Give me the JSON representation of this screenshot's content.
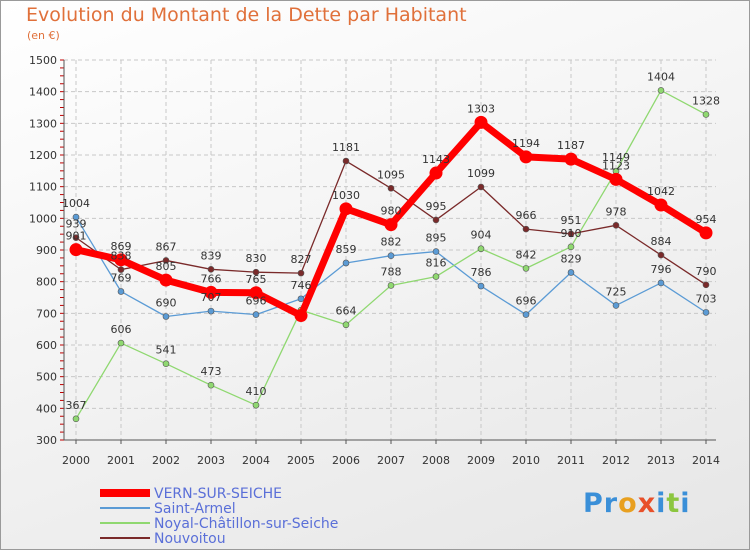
{
  "title": "Evolution du Montant de la Dette par Habitant",
  "unit_label": "(en €)",
  "logo": {
    "letters": [
      {
        "ch": "P",
        "color": "#3a8fd8"
      },
      {
        "ch": "r",
        "color": "#3a8fd8"
      },
      {
        "ch": "o",
        "color": "#e8a020"
      },
      {
        "ch": "x",
        "color": "#e8502a"
      },
      {
        "ch": "i",
        "color": "#3a8fd8"
      },
      {
        "ch": "t",
        "color": "#8cc63f"
      },
      {
        "ch": "i",
        "color": "#3a8fd8"
      }
    ]
  },
  "chart_data": {
    "type": "line",
    "x": [
      "2000",
      "2001",
      "2002",
      "2003",
      "2004",
      "2005",
      "2006",
      "2007",
      "2008",
      "2009",
      "2010",
      "2011",
      "2012",
      "2013",
      "2014"
    ],
    "ylim": [
      300,
      1500
    ],
    "yticks": [
      300,
      400,
      500,
      600,
      700,
      800,
      900,
      1000,
      1100,
      1200,
      1300,
      1400,
      1500
    ],
    "grid": true,
    "legend_position": "bottom-left",
    "series": [
      {
        "name": "VERN-SUR-SEICHE",
        "color": "#ff0000",
        "width": 7,
        "values": [
          901,
          869,
          805,
          766,
          765,
          693,
          1030,
          980,
          1143,
          1303,
          1194,
          1187,
          1123,
          1042,
          954
        ],
        "labels": [
          "901",
          "869",
          "805",
          "766",
          "765",
          "",
          "1030",
          "980",
          "1143",
          "1303",
          "1194",
          "1187",
          "1123",
          "1042",
          "954"
        ]
      },
      {
        "name": "Saint-Armel",
        "color": "#5b9bd5",
        "width": 1.3,
        "values": [
          1004,
          769,
          690,
          707,
          696,
          746,
          859,
          882,
          895,
          786,
          696,
          829,
          725,
          796,
          703
        ],
        "labels": [
          "1004",
          "769",
          "690",
          "707",
          "696",
          "746",
          "859",
          "882",
          "895",
          "786",
          "696",
          "829",
          "725",
          "796",
          "703"
        ]
      },
      {
        "name": "Noyal-Châtillon-sur-Seiche",
        "color": "#8fd870",
        "width": 1.3,
        "values": [
          367,
          606,
          541,
          473,
          410,
          710,
          664,
          788,
          816,
          904,
          842,
          910,
          1149,
          1404,
          1328
        ],
        "labels": [
          "367",
          "606",
          "541",
          "473",
          "410",
          "",
          "664",
          "788",
          "816",
          "904",
          "842",
          "910",
          "1149",
          "1404",
          "1328"
        ]
      },
      {
        "name": "Nouvoitou",
        "color": "#7a2a2a",
        "width": 1.3,
        "values": [
          939,
          838,
          867,
          839,
          830,
          827,
          1181,
          1095,
          995,
          1099,
          966,
          951,
          978,
          884,
          790
        ],
        "labels": [
          "939",
          "838",
          "867",
          "839",
          "830",
          "827",
          "1181",
          "1095",
          "995",
          "1099",
          "966",
          "951",
          "978",
          "884",
          "790"
        ]
      }
    ]
  }
}
